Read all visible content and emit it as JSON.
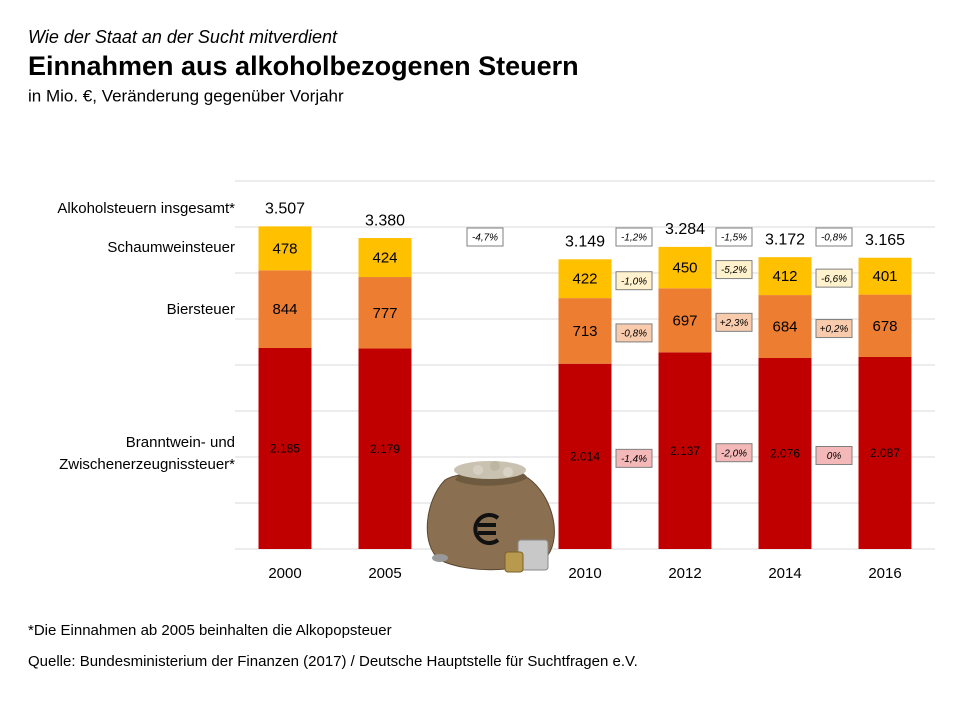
{
  "chart_data": {
    "type": "stacked_bar",
    "kicker": "Wie der Staat an der Sucht mitverdient",
    "title": "Einnahmen aus alkoholbezogenen Steuern",
    "subtitle": "in Mio. €, Veränderung gegenüber Vorjahr",
    "categories": [
      "2000",
      "2005",
      null,
      "2010",
      "2012",
      "2014",
      "2016"
    ],
    "series": [
      {
        "name": [
          "Branntwein- und",
          "Zwischenerzeugnissteuer*"
        ],
        "color": "#c00000",
        "label_color": "#ffffff",
        "box_color": "#f4b8b8",
        "values": [
          2185,
          2179,
          null,
          2014,
          2137,
          2076,
          2087
        ],
        "value_labels": [
          "2.185",
          "2.179",
          null,
          "2.014",
          "2.137",
          "2.076",
          "2.087"
        ],
        "changes": [
          null,
          null,
          null,
          "-1,4%",
          "-2,0%",
          "0%",
          null
        ]
      },
      {
        "name": "Biersteuer",
        "color": "#ed7d31",
        "label_color": "#ffffff",
        "box_color": "#f8cbad",
        "values": [
          844,
          777,
          null,
          713,
          697,
          684,
          678
        ],
        "changes": [
          null,
          null,
          null,
          "-0,8%",
          "+2,3%",
          "+0,2%",
          null
        ]
      },
      {
        "name": "Schaumweinsteuer",
        "color": "#ffc000",
        "label_color": "#404040",
        "box_color": "#fff2cc",
        "values": [
          478,
          424,
          null,
          422,
          450,
          412,
          401
        ],
        "changes": [
          null,
          null,
          null,
          "-1,0%",
          "-5,2%",
          "-6,6%",
          null
        ]
      }
    ],
    "total": {
      "name": "Alkoholsteuern insgesamt*",
      "values": [
        3507,
        3380,
        null,
        3149,
        3284,
        3172,
        3165
      ],
      "value_labels": [
        "3.507",
        "3.380",
        null,
        "3.149",
        "3.284",
        "3.172",
        "3.165"
      ],
      "changes": [
        null,
        null,
        "-4,7%",
        "-1,2%",
        "-1,5%",
        "-0,8%",
        null
      ]
    },
    "ylim": [
      0,
      4000
    ],
    "yticks": [
      0,
      500,
      1000,
      1500,
      2000,
      2500,
      3000,
      3500,
      4000
    ],
    "grid": true,
    "footnote": "*Die Einnahmen ab 2005 beinhalten die Alkopopsteuer",
    "source": "Quelle: Bundesministerium der Finanzen (2017) / Deutsche Hauptstelle für Suchtfragen e.V."
  }
}
